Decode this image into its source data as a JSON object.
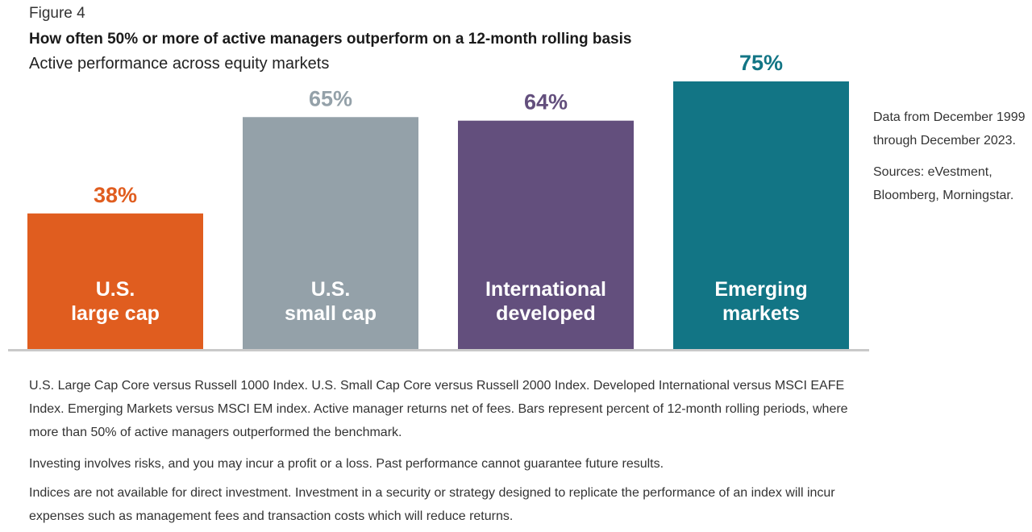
{
  "figure_label": "Figure 4",
  "title": "How often 50% or more of active managers outperform on a 12-month rolling basis",
  "subtitle": "Active performance across equity markets",
  "chart_data": {
    "type": "bar",
    "categories": [
      [
        "U.S.",
        "large cap"
      ],
      [
        "U.S.",
        "small cap"
      ],
      [
        "International",
        "developed"
      ],
      [
        "Emerging",
        "markets"
      ]
    ],
    "values": [
      38,
      65,
      64,
      75
    ],
    "value_labels": [
      "38%",
      "65%",
      "64%",
      "75%"
    ],
    "colors": [
      "#e05d1f",
      "#94a1a9",
      "#634f7d",
      "#127585"
    ],
    "ylim": [
      0,
      75
    ],
    "grid": false,
    "legend": "none"
  },
  "side_notes": {
    "data_range": "Data from December 1999 through December 2023.",
    "sources": "Sources: eVestment, Bloomberg, Morningstar."
  },
  "footnotes": [
    "U.S. Large Cap Core versus Russell 1000 Index. U.S. Small Cap Core versus Russell 2000 Index. Developed International versus MSCI EAFE Index. Emerging Markets versus MSCI EM index. Active manager returns net of fees. Bars represent percent of 12-month rolling periods, where more than 50% of active managers outperformed the benchmark.",
    "Investing involves risks, and you may incur a profit or a loss. Past performance cannot guarantee future results.",
    "Indices are not available for direct investment. Investment in a security or strategy designed to replicate the performance of an index will incur expenses such as management fees and transaction costs which will reduce returns."
  ]
}
